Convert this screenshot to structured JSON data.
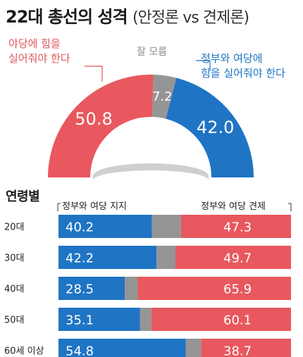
{
  "title": {
    "main": "22대 총선의 성격",
    "sub": "(안정론 vs 견제론)"
  },
  "chart_data": [
    {
      "type": "pie",
      "variant": "half-donut",
      "slices": [
        {
          "label_lines": [
            "야당에 힘을",
            "실어줘야 한다"
          ],
          "value": 50.8,
          "display": "50.8",
          "color": "#e8585e"
        },
        {
          "label_lines": [
            "잘 모름"
          ],
          "value": 7.2,
          "display": "7.2",
          "color": "#959595"
        },
        {
          "label_lines": [
            "정부와 여당에",
            "힘을 실어줘야 한다"
          ],
          "value": 42.0,
          "display": "42.0",
          "color": "#1f74c4"
        }
      ]
    },
    {
      "type": "bar",
      "orientation": "horizontal",
      "stacked": true,
      "title": "연령별",
      "legend": {
        "left": "정부와 여당 지지",
        "right": "정부와 여당 견제"
      },
      "categories": [
        "20대",
        "30대",
        "40대",
        "50대",
        "60세 이상"
      ],
      "series": [
        {
          "name": "정부와 여당 지지",
          "color": "#1f74c4",
          "values": [
            40.2,
            42.2,
            28.5,
            35.1,
            54.8
          ],
          "display": [
            "40.2",
            "42.2",
            "28.5",
            "35.1",
            "54.8"
          ]
        },
        {
          "name": "",
          "color": "#959595",
          "values": [
            12.5,
            8.1,
            5.6,
            4.8,
            6.5
          ]
        },
        {
          "name": "정부와 여당 견제",
          "color": "#e8585e",
          "values": [
            47.3,
            49.7,
            65.9,
            60.1,
            38.7
          ],
          "display": [
            "47.3",
            "49.7",
            "65.9",
            "60.1",
            "38.7"
          ]
        }
      ]
    }
  ]
}
